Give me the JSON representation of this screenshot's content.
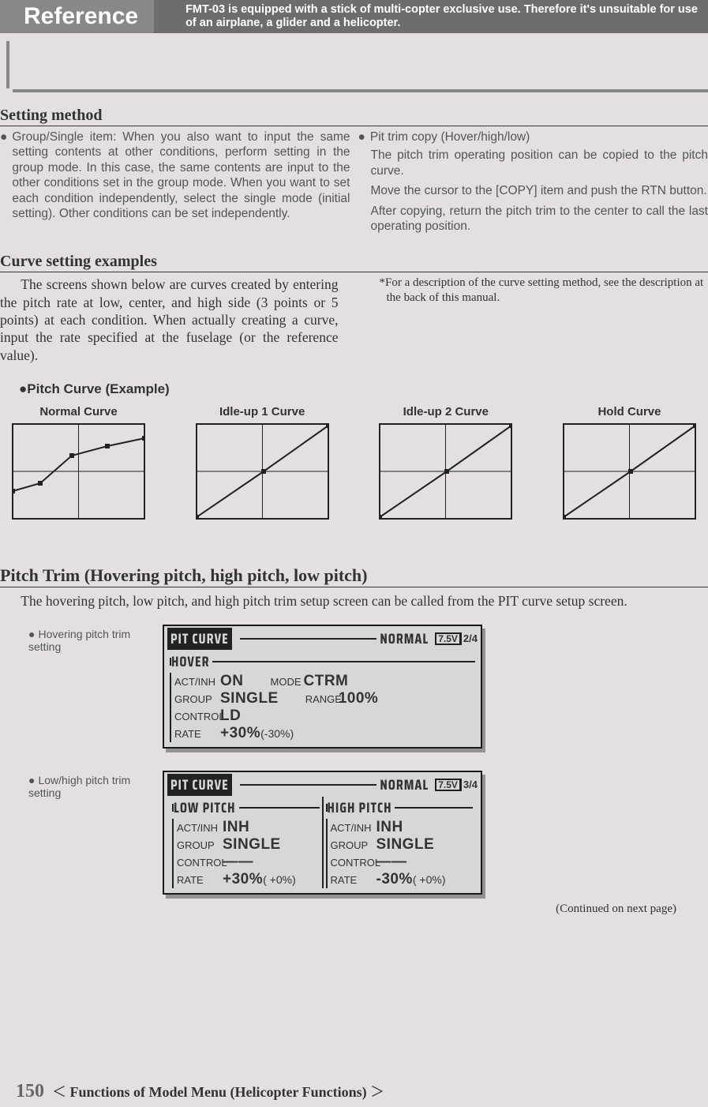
{
  "top_bar": {
    "title": "Reference",
    "note": "FMT-03 is equipped with a stick of multi-copter exclusive use. Therefore it's unsuitable for use of an airplane, a glider and a helicopter."
  },
  "setting_method": {
    "heading": "Setting method",
    "left_bullet": "Group/Single item: When you also want to input the same setting contents at other conditions, perform setting in the group mode. In this case, the same contents are input to the other conditions set in the group mode. When you want to set each condition independently, select the single mode (initial setting). Other conditions can be set independently.",
    "right_bullet": "Pit trim copy (Hover/high/low)",
    "right_p1": "The pitch trim operating position can be copied to the pitch curve.",
    "right_p2": "Move the cursor to the [COPY] item and push the RTN button.",
    "right_p3": "After copying, return the pitch trim to the center to call the last operating position."
  },
  "curve_examples": {
    "heading": "Curve setting examples",
    "body": "The screens shown below are curves created by entering the pitch rate at low, center, and high side (3 points or 5 points) at each condition. When actually creating a curve, input the rate specified at the fuselage (or the reference value).",
    "footnote": "*For a description of the curve setting method, see the description at the back of this manual.",
    "example_title": "●Pitch Curve (Example)",
    "curves": [
      {
        "label": "Normal Curve",
        "pts": [
          [
            0,
            85
          ],
          [
            35,
            75
          ],
          [
            75,
            40
          ],
          [
            120,
            28
          ],
          [
            167,
            18
          ]
        ],
        "markers": [
          [
            35,
            75
          ],
          [
            75,
            40
          ],
          [
            120,
            28
          ],
          [
            167,
            18
          ]
        ]
      },
      {
        "label": "Idle-up 1 Curve",
        "pts": [
          [
            0,
            118
          ],
          [
            85,
            60
          ],
          [
            167,
            2
          ]
        ],
        "markers": [
          [
            85,
            60
          ]
        ]
      },
      {
        "label": "Idle-up 2 Curve",
        "pts": [
          [
            0,
            118
          ],
          [
            85,
            60
          ],
          [
            167,
            2
          ]
        ],
        "markers": [
          [
            85,
            60
          ]
        ]
      },
      {
        "label": "Hold Curve",
        "pts": [
          [
            0,
            118
          ],
          [
            85,
            60
          ],
          [
            167,
            2
          ]
        ],
        "markers": [
          [
            85,
            60
          ]
        ]
      }
    ],
    "box": {
      "w": 167,
      "h": 120,
      "stroke": "#222",
      "bg": "#e3e0df",
      "marker_size": 6
    }
  },
  "pitch_trim": {
    "heading": "Pitch Trim (Hovering pitch, high pitch, low pitch)",
    "body": "The hovering pitch, low pitch, and high pitch trim setup screen can be called from the PIT curve setup screen.",
    "screen1": {
      "caption": "Hovering pitch trim setting",
      "title": "PIT CURVE",
      "status": "NORMAL",
      "battery": "7.5V",
      "page": "2/4",
      "group_label": "HOVER",
      "lines": [
        {
          "l": "ACT/INH",
          "v": "ON",
          "l2": "MODE",
          "v2": "CTRM"
        },
        {
          "l": "GROUP",
          "v": "SINGLE",
          "l2": "RANGE",
          "v2": "100%"
        },
        {
          "l": "CONTROL",
          "v": "LD"
        },
        {
          "l": "RATE",
          "v": "+30%",
          "v_sm": "(-30%)"
        }
      ]
    },
    "screen2": {
      "caption": "Low/high pitch trim setting",
      "title": "PIT CURVE",
      "status": "NORMAL",
      "battery": "7.5V",
      "page": "3/4",
      "left": {
        "group_label": "LOW PITCH",
        "lines": [
          {
            "l": "ACT/INH",
            "v": "INH"
          },
          {
            "l": "GROUP",
            "v": "SINGLE"
          },
          {
            "l": "CONTROL",
            "v": "——"
          },
          {
            "l": "RATE",
            "v": "+30%",
            "v_sm": "( +0%)"
          }
        ]
      },
      "right": {
        "group_label": "HIGH PITCH",
        "lines": [
          {
            "l": "ACT/INH",
            "v": "INH"
          },
          {
            "l": "GROUP",
            "v": "SINGLE"
          },
          {
            "l": "CONTROL",
            "v": "——"
          },
          {
            "l": "RATE",
            "v": "-30%",
            "v_sm": "( +0%)"
          }
        ]
      }
    },
    "continued": "(Continued on next page)"
  },
  "footer": {
    "page_num": "150",
    "text": "Functions of Model Menu (Helicopter Functions)"
  }
}
